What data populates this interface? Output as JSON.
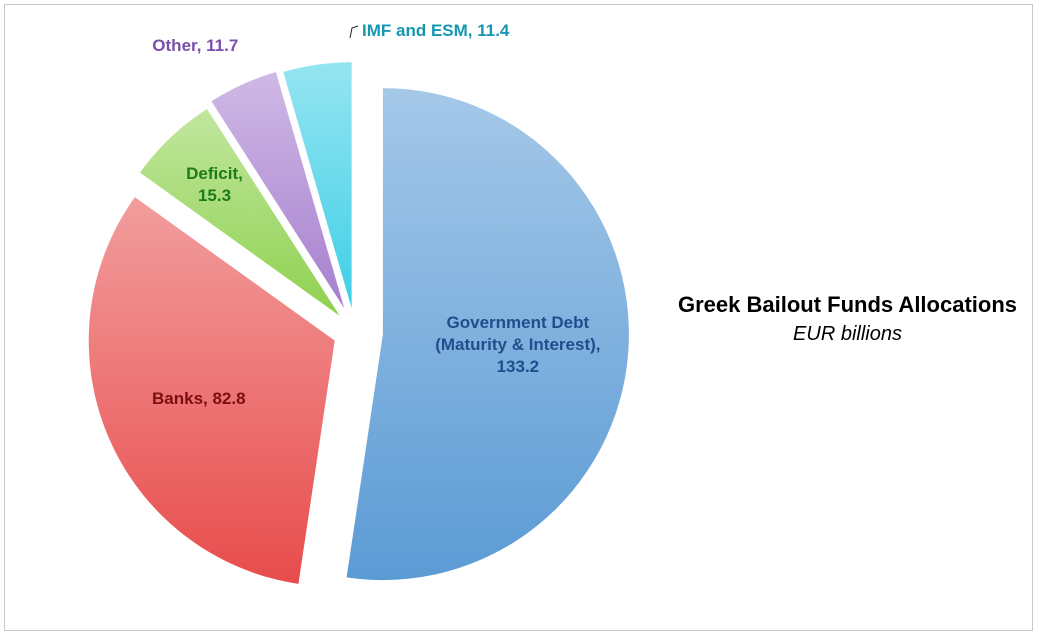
{
  "chart_data": {
    "type": "pie",
    "title": "Greek Bailout Funds Allocations",
    "subtitle": "EUR billions",
    "exploded": true,
    "slices": [
      {
        "label": "Government Debt (Maturity & Interest)",
        "value": 133.2,
        "color": "#5b9bd5",
        "label_color": "#1f4e8c",
        "label_lines": [
          "Government Debt",
          "(Maturity & Interest),",
          "133.2"
        ]
      },
      {
        "label": "Banks",
        "value": 82.8,
        "color": "#e84c4c",
        "label_color": "#7a0f12",
        "label_lines": [
          "Banks, 82.8"
        ]
      },
      {
        "label": "Deficit",
        "value": 15.3,
        "color": "#8fd14f",
        "label_color": "#1f7a1a",
        "label_lines": [
          "Deficit,",
          "15.3"
        ]
      },
      {
        "label": "Other",
        "value": 11.7,
        "color": "#a77fcf",
        "label_color": "#7b4fa8",
        "label_lines": [
          "Other, 11.7"
        ]
      },
      {
        "label": "IMF and ESM",
        "value": 11.4,
        "color": "#3fcfe6",
        "label_color": "#1597b3",
        "label_lines": [
          "IMF and ESM, 11.4"
        ]
      }
    ],
    "legend": "none"
  }
}
